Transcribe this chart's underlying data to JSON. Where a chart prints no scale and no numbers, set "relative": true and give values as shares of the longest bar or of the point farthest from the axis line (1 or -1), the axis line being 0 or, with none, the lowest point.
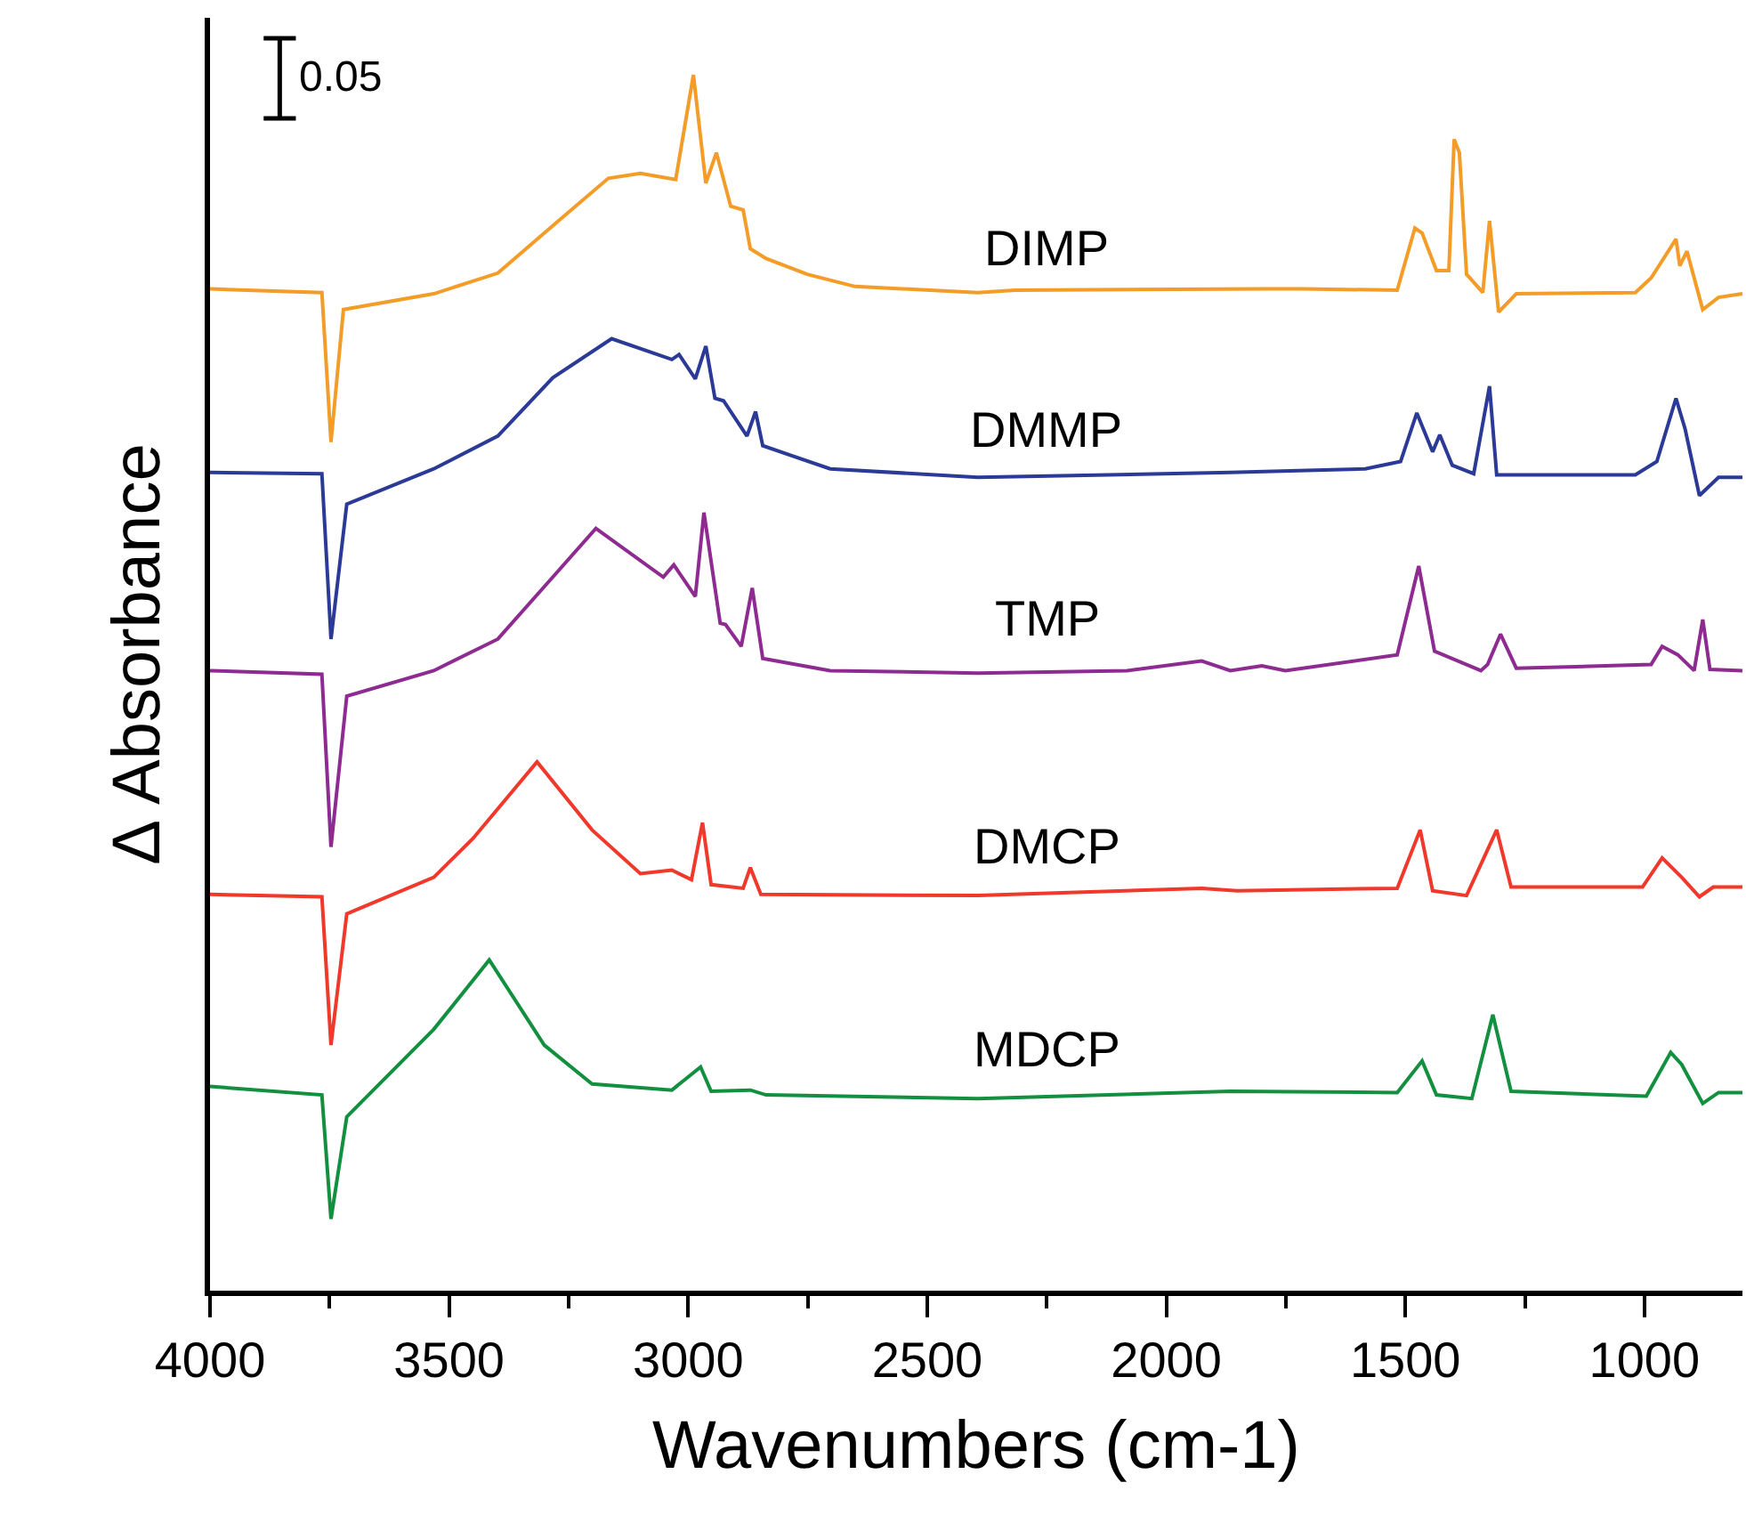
{
  "chart_data": {
    "type": "line",
    "relative": true,
    "xlabel": "Wavenumbers (cm-1)",
    "ylabel": "Δ Absorbance",
    "legend": false,
    "marker": "none",
    "line_style": "solid",
    "xlim": [
      4000,
      795
    ],
    "xticks": [
      4000,
      {
        "value": 3750,
        "label": null
      },
      3500,
      {
        "value": 3250,
        "label": null
      },
      3000,
      {
        "value": 2750,
        "label": null
      },
      2500,
      {
        "value": 2250,
        "label": null
      },
      2000,
      {
        "value": 1750,
        "label": null
      },
      1500,
      {
        "value": 1250,
        "label": null
      },
      1000
    ],
    "annotations": [
      "0.05"
    ],
    "series": [
      {
        "name": "DIMP",
        "color": "#f39c27",
        "x": [
          4000,
          3766,
          3747,
          3721,
          3532,
          3398,
          3283,
          3167,
          3100,
          3026,
          2989,
          2963,
          2941,
          2911,
          2885,
          2870,
          2837,
          2751,
          2651,
          2394,
          2316,
          1785,
          1718,
          1517,
          1480,
          1465,
          1435,
          1409,
          1398,
          1387,
          1372,
          1338,
          1324,
          1305,
          1268,
          1019,
          986,
          934,
          926,
          911,
          896,
          878,
          845,
          795
        ],
        "values": [
          0.824,
          0.821,
          0.698,
          0.807,
          0.82,
          0.837,
          0.876,
          0.915,
          0.919,
          0.914,
          1.0,
          0.911,
          0.936,
          0.892,
          0.889,
          0.857,
          0.849,
          0.836,
          0.826,
          0.821,
          0.823,
          0.824,
          0.824,
          0.823,
          0.874,
          0.87,
          0.839,
          0.839,
          0.947,
          0.936,
          0.836,
          0.821,
          0.88,
          0.805,
          0.82,
          0.821,
          0.833,
          0.865,
          0.843,
          0.855,
          0.833,
          0.807,
          0.817,
          0.82
        ]
      },
      {
        "name": "DMMP",
        "color": "#2b3a97",
        "x": [
          4000,
          3766,
          3747,
          3714,
          3532,
          3398,
          3283,
          3160,
          3034,
          3019,
          2985,
          2963,
          2944,
          2926,
          2877,
          2859,
          2844,
          2703,
          2394,
          1866,
          1584,
          1510,
          1476,
          1443,
          1428,
          1402,
          1357,
          1324,
          1309,
          1019,
          974,
          934,
          915,
          885,
          845,
          795
        ],
        "values": [
          0.673,
          0.672,
          0.536,
          0.647,
          0.676,
          0.703,
          0.751,
          0.783,
          0.766,
          0.77,
          0.75,
          0.777,
          0.734,
          0.732,
          0.703,
          0.723,
          0.695,
          0.676,
          0.669,
          0.673,
          0.676,
          0.682,
          0.722,
          0.69,
          0.704,
          0.679,
          0.672,
          0.744,
          0.671,
          0.671,
          0.682,
          0.734,
          0.709,
          0.654,
          0.669,
          0.669
        ]
      },
      {
        "name": "TMP",
        "color": "#8e2b91",
        "x": [
          4000,
          3766,
          3747,
          3714,
          3532,
          3398,
          3283,
          3193,
          3052,
          3030,
          2985,
          2967,
          2933,
          2922,
          2889,
          2866,
          2844,
          2703,
          2394,
          2082,
          1926,
          1866,
          1800,
          1751,
          1517,
          1472,
          1439,
          1342,
          1328,
          1301,
          1268,
          986,
          963,
          930,
          896,
          878,
          863,
          795
        ],
        "values": [
          0.51,
          0.507,
          0.365,
          0.489,
          0.51,
          0.536,
          0.587,
          0.627,
          0.587,
          0.597,
          0.571,
          0.64,
          0.549,
          0.548,
          0.53,
          0.578,
          0.52,
          0.51,
          0.508,
          0.51,
          0.518,
          0.51,
          0.514,
          0.51,
          0.523,
          0.596,
          0.526,
          0.51,
          0.515,
          0.54,
          0.512,
          0.515,
          0.53,
          0.523,
          0.51,
          0.552,
          0.511,
          0.51
        ]
      },
      {
        "name": "DMCP",
        "color": "#f0382b",
        "x": [
          4000,
          3766,
          3747,
          3714,
          3532,
          3450,
          3316,
          3201,
          3100,
          3034,
          2993,
          2970,
          2952,
          2885,
          2870,
          2848,
          2394,
          1926,
          1852,
          1517,
          1469,
          1443,
          1372,
          1309,
          1279,
          1004,
          963,
          922,
          885,
          856,
          795
        ],
        "values": [
          0.326,
          0.324,
          0.202,
          0.31,
          0.34,
          0.372,
          0.435,
          0.379,
          0.343,
          0.346,
          0.338,
          0.385,
          0.334,
          0.331,
          0.348,
          0.326,
          0.325,
          0.331,
          0.329,
          0.331,
          0.379,
          0.329,
          0.325,
          0.379,
          0.332,
          0.332,
          0.356,
          0.34,
          0.324,
          0.332,
          0.332
        ]
      },
      {
        "name": "MDCP",
        "color": "#12903f",
        "x": [
          4000,
          3766,
          3747,
          3714,
          3613,
          3532,
          3416,
          3301,
          3201,
          3034,
          2974,
          2952,
          2870,
          2837,
          2394,
          1866,
          1517,
          1465,
          1435,
          1361,
          1317,
          1279,
          996,
          945,
          922,
          878,
          845,
          795
        ],
        "values": [
          0.168,
          0.161,
          0.059,
          0.143,
          0.183,
          0.215,
          0.272,
          0.202,
          0.17,
          0.165,
          0.184,
          0.164,
          0.165,
          0.161,
          0.158,
          0.164,
          0.163,
          0.189,
          0.161,
          0.158,
          0.227,
          0.164,
          0.16,
          0.196,
          0.186,
          0.154,
          0.163,
          0.163
        ]
      }
    ]
  }
}
